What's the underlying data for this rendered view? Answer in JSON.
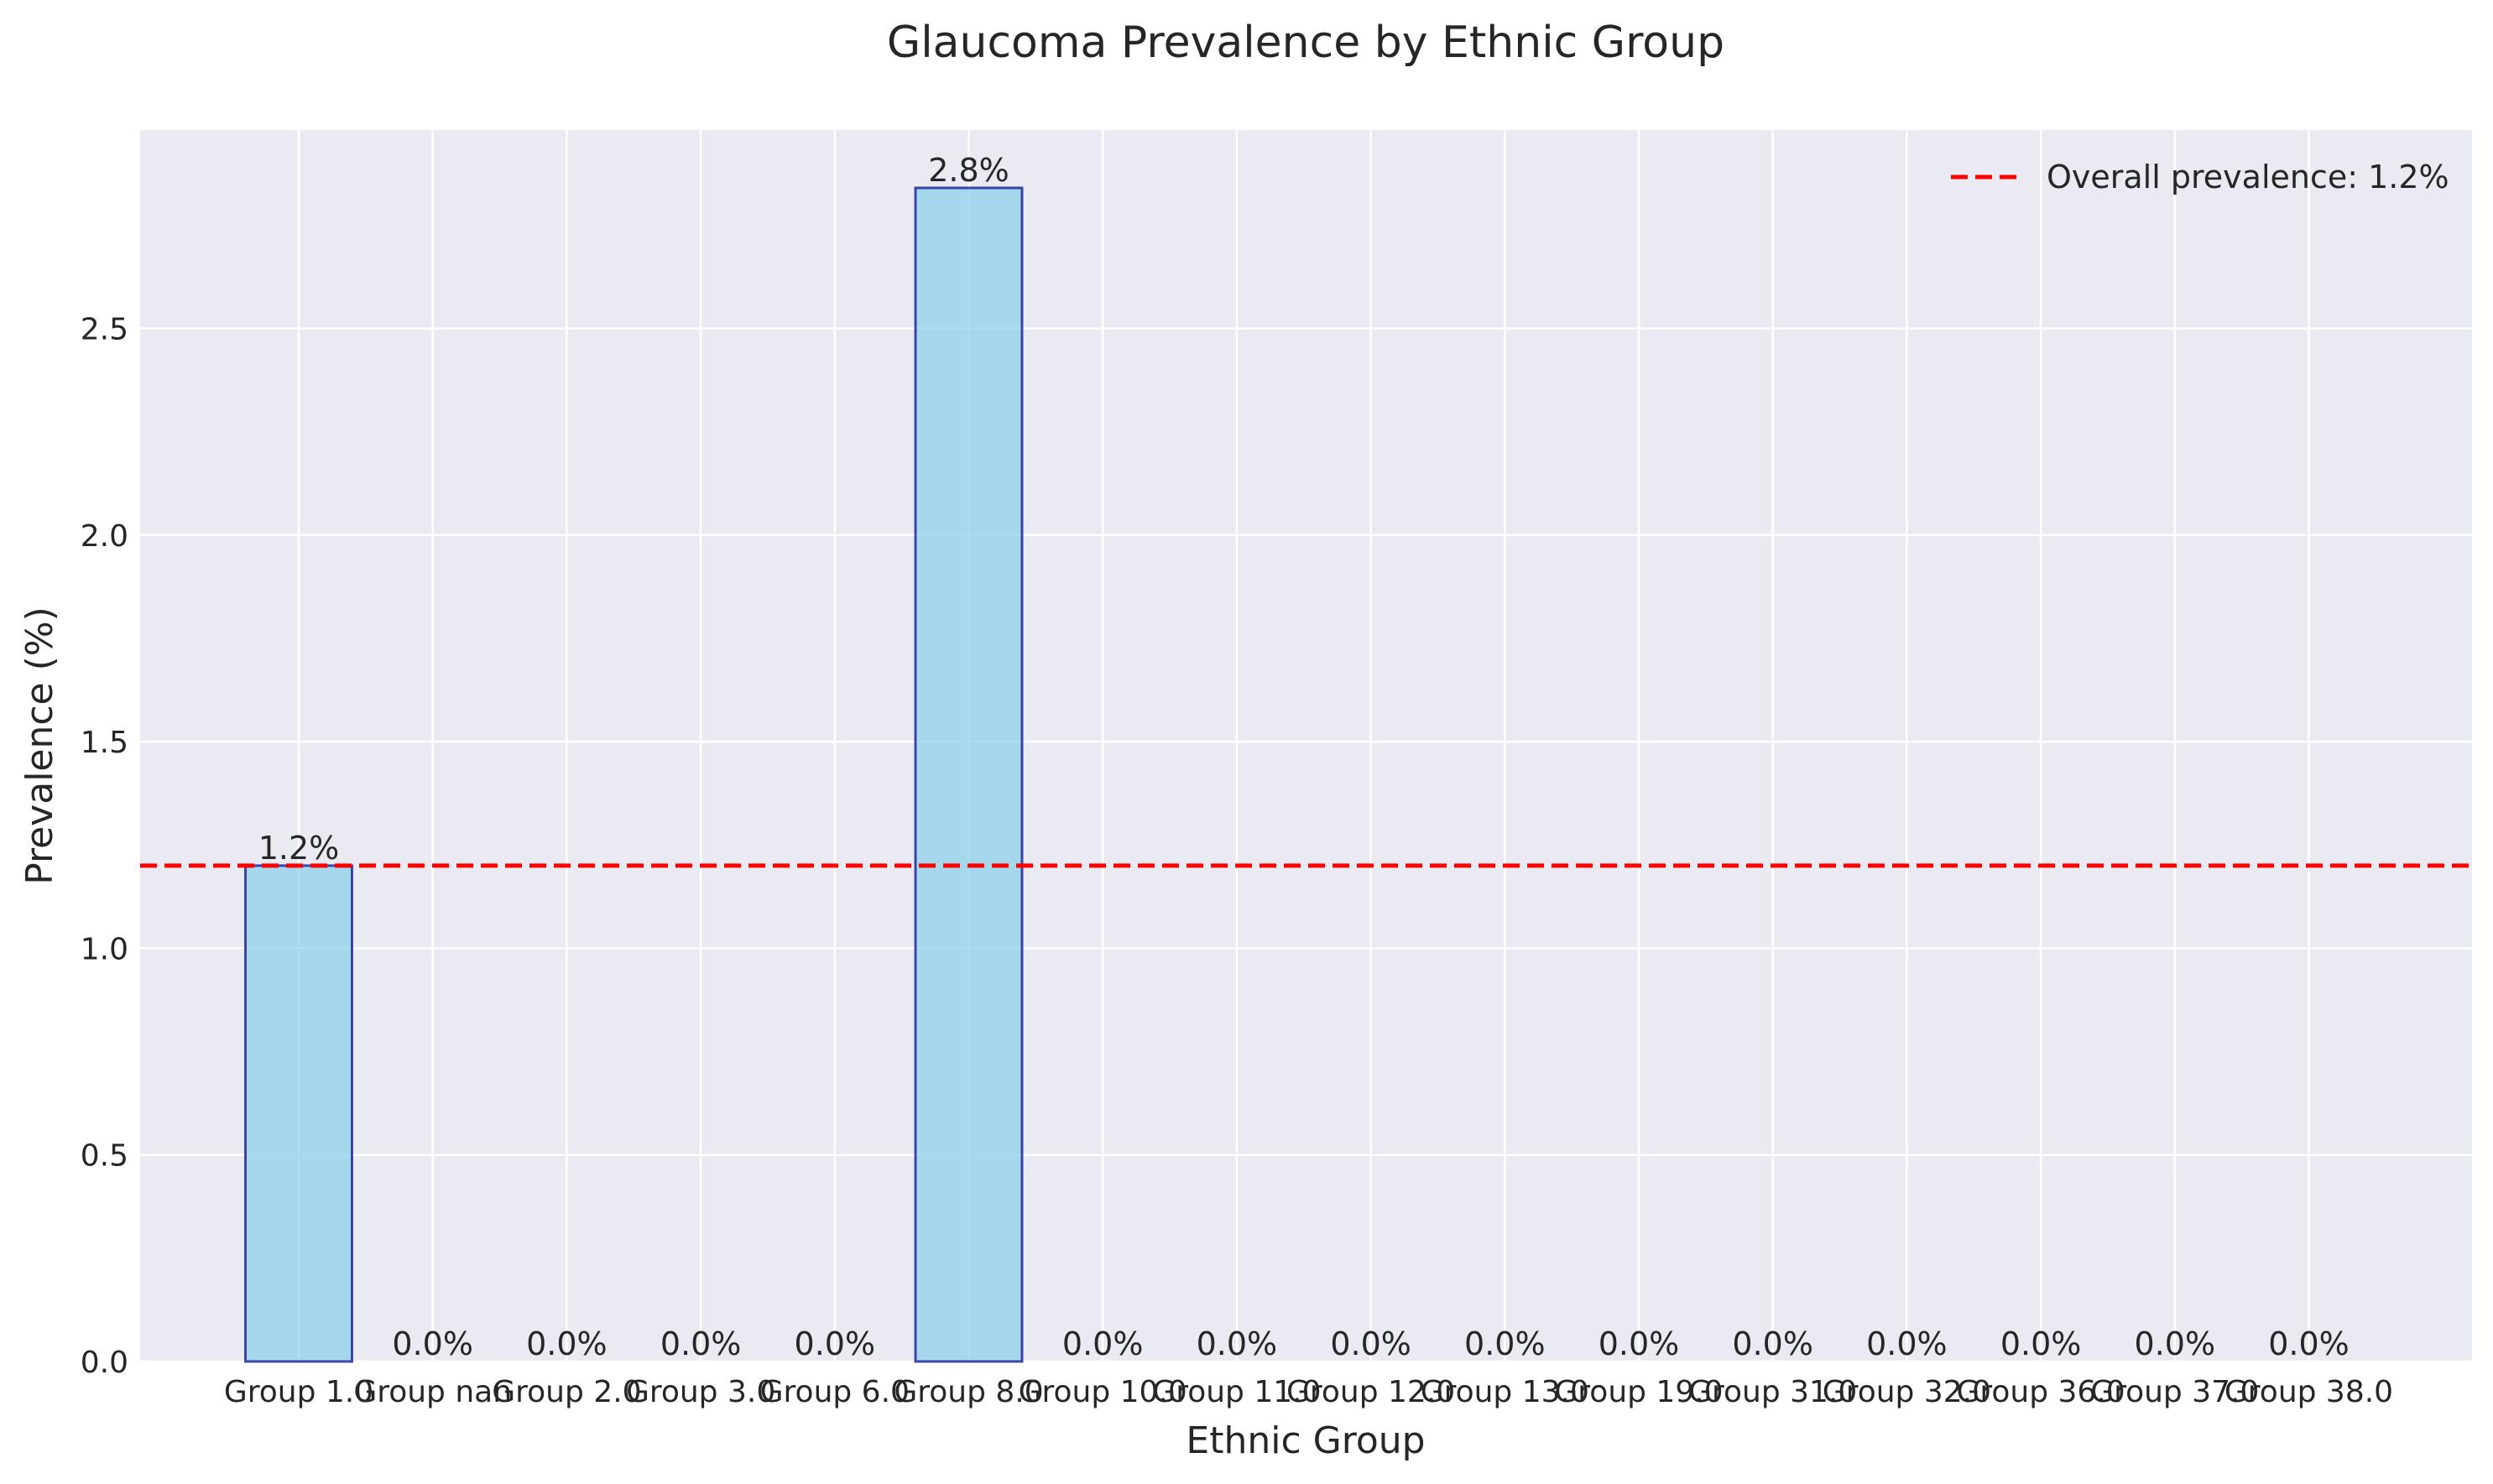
{
  "chart_data": {
    "type": "bar",
    "title": "Glaucoma Prevalence by Ethnic Group",
    "xlabel": "Ethnic Group",
    "ylabel": "Prevalence (%)",
    "categories": [
      "Group 1.0",
      "Group nan",
      "Group 2.0",
      "Group 3.0",
      "Group 6.0",
      "Group 8.0",
      "Group 10.0",
      "Group 11.0",
      "Group 12.0",
      "Group 13.0",
      "Group 19.0",
      "Group 31.0",
      "Group 32.0",
      "Group 36.0",
      "Group 37.0",
      "Group 38.0"
    ],
    "values": [
      1.2,
      0.0,
      0.0,
      0.0,
      0.0,
      2.84,
      0.0,
      0.0,
      0.0,
      0.0,
      0.0,
      0.0,
      0.0,
      0.0,
      0.0,
      0.0
    ],
    "data_labels": [
      "1.2%",
      "0.0%",
      "0.0%",
      "0.0%",
      "0.0%",
      "2.8%",
      "0.0%",
      "0.0%",
      "0.0%",
      "0.0%",
      "0.0%",
      "0.0%",
      "0.0%",
      "0.0%",
      "0.0%",
      "0.0%"
    ],
    "ylim": [
      0,
      2.98
    ],
    "yticks": [
      0.0,
      0.5,
      1.0,
      1.5,
      2.0,
      2.5
    ],
    "ytick_labels": [
      "0.0",
      "0.5",
      "1.0",
      "1.5",
      "2.0",
      "2.5"
    ],
    "reference_line": {
      "value": 1.2,
      "label": "Overall prevalence: 1.2%",
      "color": "#ff0000",
      "style": "dashed"
    },
    "legend": {
      "placement": "top-right"
    },
    "grid": true,
    "colors": {
      "plot_background": "#eaeaf2",
      "grid": "#ffffff",
      "bar_fill": "#87ceeb",
      "bar_edge": "#00008b",
      "text": "#262626"
    }
  }
}
